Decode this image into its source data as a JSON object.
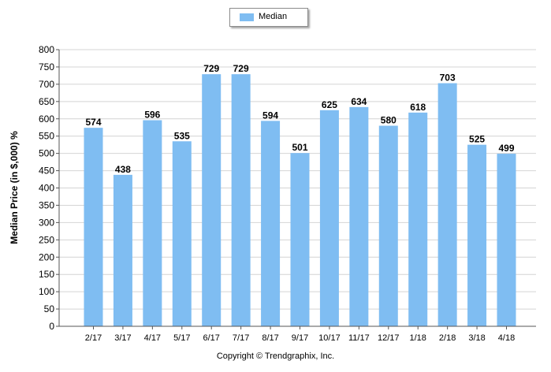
{
  "chart_data": {
    "type": "bar",
    "categories": [
      "2/17",
      "3/17",
      "4/17",
      "5/17",
      "6/17",
      "7/17",
      "8/17",
      "9/17",
      "10/17",
      "11/17",
      "12/17",
      "1/18",
      "2/18",
      "3/18",
      "4/18"
    ],
    "series": [
      {
        "name": "Median",
        "values": [
          574,
          438,
          596,
          535,
          729,
          729,
          594,
          501,
          625,
          634,
          580,
          618,
          703,
          525,
          499
        ]
      }
    ],
    "ylabel": "Median Price (in $,000) %",
    "ylim": [
      0,
      800
    ],
    "yticks": [
      0,
      50,
      100,
      150,
      200,
      250,
      300,
      350,
      400,
      450,
      500,
      550,
      600,
      650,
      700,
      750,
      800
    ],
    "grid": true,
    "legend_position": "top-center",
    "data_labels": true,
    "bar_color": "#7fbdf2"
  },
  "footer": {
    "copyright": "Copyright © Trendgraphix, Inc."
  }
}
